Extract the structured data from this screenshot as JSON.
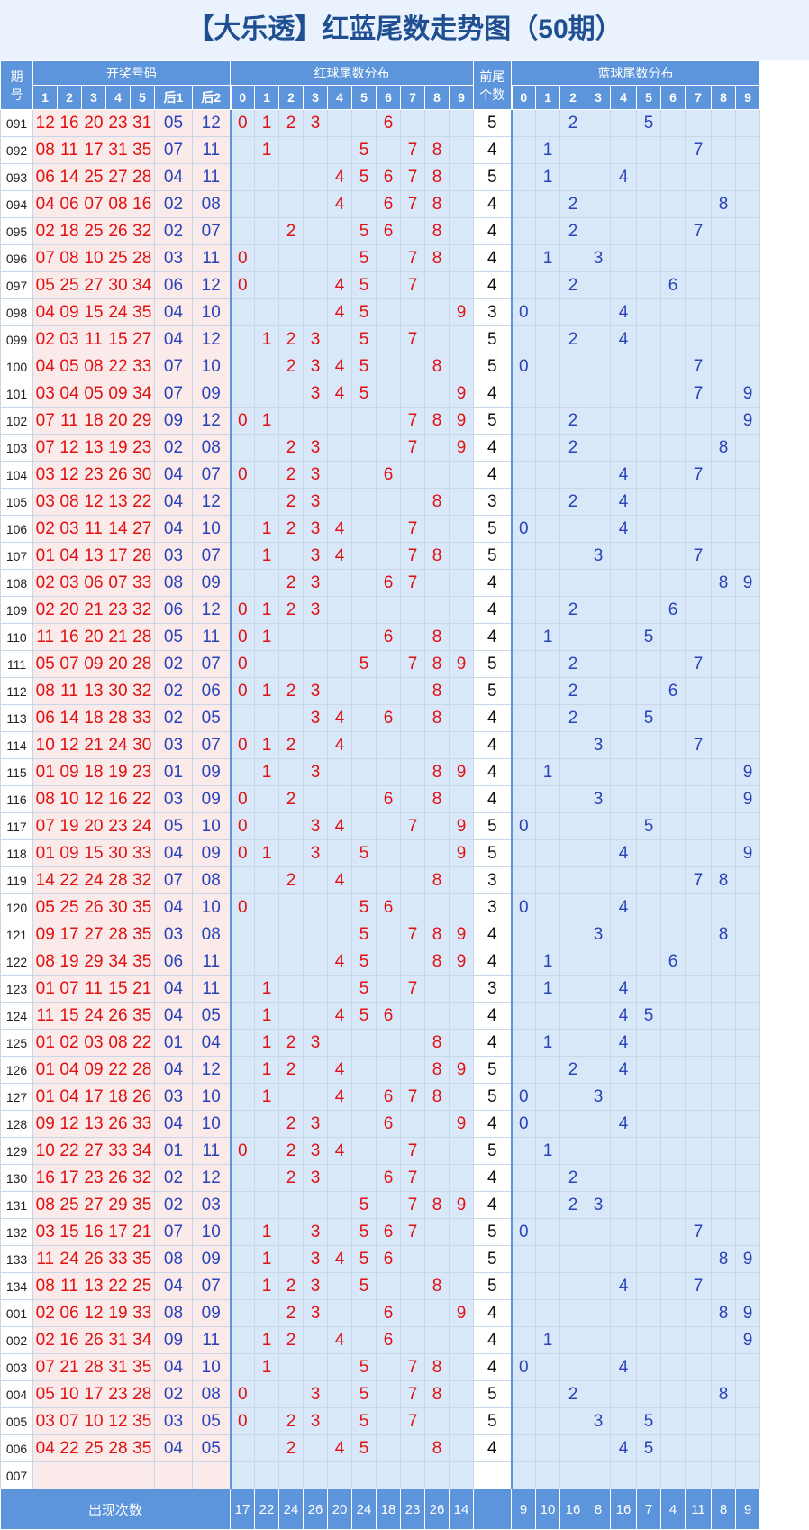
{
  "title": "【大乐透】红蓝尾数走势图（50期）",
  "headers": {
    "issue_top": "期",
    "issue_bottom": "号",
    "draw_numbers": "开奖号码",
    "red_tail_dist": "红球尾数分布",
    "front_tail_count_line1": "前尾",
    "front_tail_count_line2": "个数",
    "blue_tail_dist": "蓝球尾数分布",
    "main_cols": [
      "1",
      "2",
      "3",
      "4",
      "5"
    ],
    "back_cols": [
      "后1",
      "后2"
    ],
    "digits": [
      "0",
      "1",
      "2",
      "3",
      "4",
      "5",
      "6",
      "7",
      "8",
      "9"
    ]
  },
  "rows": [
    {
      "issue": "091",
      "main": [
        "12",
        "16",
        "20",
        "23",
        "31"
      ],
      "back": [
        "05",
        "12"
      ]
    },
    {
      "issue": "092",
      "main": [
        "08",
        "11",
        "17",
        "31",
        "35"
      ],
      "back": [
        "07",
        "11"
      ]
    },
    {
      "issue": "093",
      "main": [
        "06",
        "14",
        "25",
        "27",
        "28"
      ],
      "back": [
        "04",
        "11"
      ]
    },
    {
      "issue": "094",
      "main": [
        "04",
        "06",
        "07",
        "08",
        "16"
      ],
      "back": [
        "02",
        "08"
      ]
    },
    {
      "issue": "095",
      "main": [
        "02",
        "18",
        "25",
        "26",
        "32"
      ],
      "back": [
        "02",
        "07"
      ]
    },
    {
      "issue": "096",
      "main": [
        "07",
        "08",
        "10",
        "25",
        "28"
      ],
      "back": [
        "03",
        "11"
      ]
    },
    {
      "issue": "097",
      "main": [
        "05",
        "25",
        "27",
        "30",
        "34"
      ],
      "back": [
        "06",
        "12"
      ]
    },
    {
      "issue": "098",
      "main": [
        "04",
        "09",
        "15",
        "24",
        "35"
      ],
      "back": [
        "04",
        "10"
      ]
    },
    {
      "issue": "099",
      "main": [
        "02",
        "03",
        "11",
        "15",
        "27"
      ],
      "back": [
        "04",
        "12"
      ]
    },
    {
      "issue": "100",
      "main": [
        "04",
        "05",
        "08",
        "22",
        "33"
      ],
      "back": [
        "07",
        "10"
      ]
    },
    {
      "issue": "101",
      "main": [
        "03",
        "04",
        "05",
        "09",
        "34"
      ],
      "back": [
        "07",
        "09"
      ]
    },
    {
      "issue": "102",
      "main": [
        "07",
        "11",
        "18",
        "20",
        "29"
      ],
      "back": [
        "09",
        "12"
      ]
    },
    {
      "issue": "103",
      "main": [
        "07",
        "12",
        "13",
        "19",
        "23"
      ],
      "back": [
        "02",
        "08"
      ]
    },
    {
      "issue": "104",
      "main": [
        "03",
        "12",
        "23",
        "26",
        "30"
      ],
      "back": [
        "04",
        "07"
      ]
    },
    {
      "issue": "105",
      "main": [
        "03",
        "08",
        "12",
        "13",
        "22"
      ],
      "back": [
        "04",
        "12"
      ]
    },
    {
      "issue": "106",
      "main": [
        "02",
        "03",
        "11",
        "14",
        "27"
      ],
      "back": [
        "04",
        "10"
      ]
    },
    {
      "issue": "107",
      "main": [
        "01",
        "04",
        "13",
        "17",
        "28"
      ],
      "back": [
        "03",
        "07"
      ]
    },
    {
      "issue": "108",
      "main": [
        "02",
        "03",
        "06",
        "07",
        "33"
      ],
      "back": [
        "08",
        "09"
      ]
    },
    {
      "issue": "109",
      "main": [
        "02",
        "20",
        "21",
        "23",
        "32"
      ],
      "back": [
        "06",
        "12"
      ]
    },
    {
      "issue": "110",
      "main": [
        "11",
        "16",
        "20",
        "21",
        "28"
      ],
      "back": [
        "05",
        "11"
      ]
    },
    {
      "issue": "111",
      "main": [
        "05",
        "07",
        "09",
        "20",
        "28"
      ],
      "back": [
        "02",
        "07"
      ]
    },
    {
      "issue": "112",
      "main": [
        "08",
        "11",
        "13",
        "30",
        "32"
      ],
      "back": [
        "02",
        "06"
      ]
    },
    {
      "issue": "113",
      "main": [
        "06",
        "14",
        "18",
        "28",
        "33"
      ],
      "back": [
        "02",
        "05"
      ]
    },
    {
      "issue": "114",
      "main": [
        "10",
        "12",
        "21",
        "24",
        "30"
      ],
      "back": [
        "03",
        "07"
      ]
    },
    {
      "issue": "115",
      "main": [
        "01",
        "09",
        "18",
        "19",
        "23"
      ],
      "back": [
        "01",
        "09"
      ]
    },
    {
      "issue": "116",
      "main": [
        "08",
        "10",
        "12",
        "16",
        "22"
      ],
      "back": [
        "03",
        "09"
      ]
    },
    {
      "issue": "117",
      "main": [
        "07",
        "19",
        "20",
        "23",
        "24"
      ],
      "back": [
        "05",
        "10"
      ]
    },
    {
      "issue": "118",
      "main": [
        "01",
        "09",
        "15",
        "30",
        "33"
      ],
      "back": [
        "04",
        "09"
      ]
    },
    {
      "issue": "119",
      "main": [
        "14",
        "22",
        "24",
        "28",
        "32"
      ],
      "back": [
        "07",
        "08"
      ]
    },
    {
      "issue": "120",
      "main": [
        "05",
        "25",
        "26",
        "30",
        "35"
      ],
      "back": [
        "04",
        "10"
      ]
    },
    {
      "issue": "121",
      "main": [
        "09",
        "17",
        "27",
        "28",
        "35"
      ],
      "back": [
        "03",
        "08"
      ]
    },
    {
      "issue": "122",
      "main": [
        "08",
        "19",
        "29",
        "34",
        "35"
      ],
      "back": [
        "06",
        "11"
      ]
    },
    {
      "issue": "123",
      "main": [
        "01",
        "07",
        "11",
        "15",
        "21"
      ],
      "back": [
        "04",
        "11"
      ]
    },
    {
      "issue": "124",
      "main": [
        "11",
        "15",
        "24",
        "26",
        "35"
      ],
      "back": [
        "04",
        "05"
      ]
    },
    {
      "issue": "125",
      "main": [
        "01",
        "02",
        "03",
        "08",
        "22"
      ],
      "back": [
        "01",
        "04"
      ]
    },
    {
      "issue": "126",
      "main": [
        "01",
        "04",
        "09",
        "22",
        "28"
      ],
      "back": [
        "04",
        "12"
      ]
    },
    {
      "issue": "127",
      "main": [
        "01",
        "04",
        "17",
        "18",
        "26"
      ],
      "back": [
        "03",
        "10"
      ]
    },
    {
      "issue": "128",
      "main": [
        "09",
        "12",
        "13",
        "26",
        "33"
      ],
      "back": [
        "04",
        "10"
      ]
    },
    {
      "issue": "129",
      "main": [
        "10",
        "22",
        "27",
        "33",
        "34"
      ],
      "back": [
        "01",
        "11"
      ]
    },
    {
      "issue": "130",
      "main": [
        "16",
        "17",
        "23",
        "26",
        "32"
      ],
      "back": [
        "02",
        "12"
      ]
    },
    {
      "issue": "131",
      "main": [
        "08",
        "25",
        "27",
        "29",
        "35"
      ],
      "back": [
        "02",
        "03"
      ]
    },
    {
      "issue": "132",
      "main": [
        "03",
        "15",
        "16",
        "17",
        "21"
      ],
      "back": [
        "07",
        "10"
      ]
    },
    {
      "issue": "133",
      "main": [
        "11",
        "24",
        "26",
        "33",
        "35"
      ],
      "back": [
        "08",
        "09"
      ]
    },
    {
      "issue": "134",
      "main": [
        "08",
        "11",
        "13",
        "22",
        "25"
      ],
      "back": [
        "04",
        "07"
      ]
    },
    {
      "issue": "001",
      "main": [
        "02",
        "06",
        "12",
        "19",
        "33"
      ],
      "back": [
        "08",
        "09"
      ]
    },
    {
      "issue": "002",
      "main": [
        "02",
        "16",
        "26",
        "31",
        "34"
      ],
      "back": [
        "09",
        "11"
      ]
    },
    {
      "issue": "003",
      "main": [
        "07",
        "21",
        "28",
        "31",
        "35"
      ],
      "back": [
        "04",
        "10"
      ]
    },
    {
      "issue": "004",
      "main": [
        "05",
        "10",
        "17",
        "23",
        "28"
      ],
      "back": [
        "02",
        "08"
      ]
    },
    {
      "issue": "005",
      "main": [
        "03",
        "07",
        "10",
        "12",
        "35"
      ],
      "back": [
        "03",
        "05"
      ]
    },
    {
      "issue": "006",
      "main": [
        "04",
        "22",
        "25",
        "28",
        "35"
      ],
      "back": [
        "04",
        "05"
      ]
    },
    {
      "issue": "007",
      "main": [],
      "back": []
    }
  ],
  "footer": {
    "label": "出现次数",
    "red_counts": [
      "17",
      "22",
      "24",
      "26",
      "20",
      "24",
      "18",
      "23",
      "26",
      "14"
    ],
    "blue_counts": [
      "9",
      "10",
      "16",
      "8",
      "16",
      "7",
      "4",
      "11",
      "8",
      "9"
    ]
  }
}
